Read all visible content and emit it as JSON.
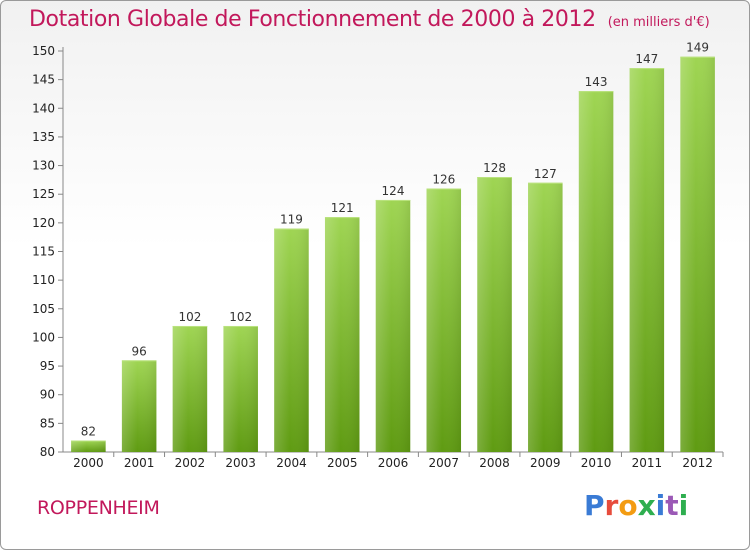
{
  "header": {
    "title": "Dotation Globale de Fonctionnement de 2000 à 2012",
    "subtitle": "(en milliers d'€)"
  },
  "footer": {
    "commune": "ROPPENHEIM",
    "logo_text": "Proxiti",
    "logo_letter_colors": [
      "#3a7bd5",
      "#e74c3c",
      "#f39c12",
      "#2eae4f",
      "#3a7bd5",
      "#9b59b6",
      "#2eae4f"
    ]
  },
  "chart_data": {
    "type": "bar",
    "title": "Dotation Globale de Fonctionnement de 2000 à 2012",
    "subtitle": "(en milliers d'€)",
    "xlabel": "",
    "ylabel": "",
    "categories": [
      "2000",
      "2001",
      "2002",
      "2003",
      "2004",
      "2005",
      "2006",
      "2007",
      "2008",
      "2009",
      "2010",
      "2011",
      "2012"
    ],
    "values": [
      82,
      96,
      102,
      102,
      119,
      121,
      124,
      126,
      128,
      127,
      143,
      147,
      149
    ],
    "ylim": [
      80,
      150
    ],
    "yticks": [
      80,
      85,
      90,
      95,
      100,
      105,
      110,
      115,
      120,
      125,
      130,
      135,
      140,
      145,
      150
    ],
    "grid": false,
    "legend": "none",
    "colors": {
      "bar_light": "#9ad04e",
      "bar_dark": "#5f9b12",
      "title": "#c2185b"
    }
  }
}
